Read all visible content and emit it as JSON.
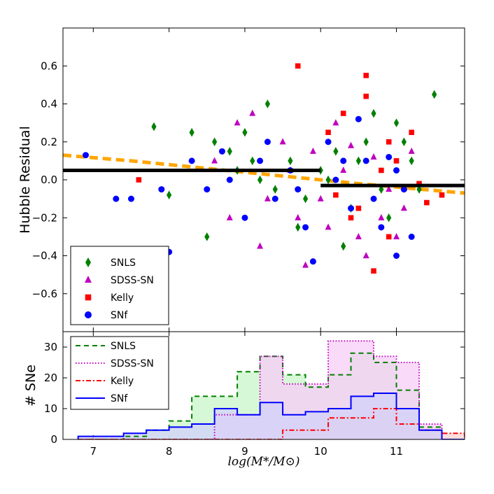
{
  "chart_data": [
    {
      "type": "scatter",
      "panel": "top",
      "xlabel": "log(M*/M⊙)",
      "ylabel": "Hubble Residual",
      "xlim": [
        6.6,
        11.9
      ],
      "ylim": [
        -0.8,
        0.8
      ],
      "xticks": [
        7,
        8,
        9,
        10,
        11
      ],
      "yticks": [
        -0.6,
        -0.4,
        -0.2,
        0.0,
        0.2,
        0.4,
        0.6
      ],
      "ytick_labels": [
        "−0.6",
        "−0.4",
        "−0.2",
        "0.0",
        "0.2",
        "0.4",
        "0.6"
      ],
      "legend_position": "lower-left",
      "step_fit": {
        "color": "#000000",
        "segments": [
          {
            "x": [
              6.6,
              10.0
            ],
            "y": 0.05
          },
          {
            "x": [
              10.0,
              11.9
            ],
            "y": -0.03
          }
        ]
      },
      "trend_fit": {
        "color": "#ffa500",
        "x": [
          6.6,
          7.5,
          8.5,
          9.5,
          10.5,
          11.9
        ],
        "y": [
          0.13,
          0.1,
          0.06,
          0.02,
          -0.02,
          -0.07
        ]
      },
      "series": [
        {
          "name": "SNLS",
          "marker": "diamond",
          "color": "#008000",
          "points": [
            [
              7.8,
              0.28
            ],
            [
              8.3,
              0.25
            ],
            [
              8.6,
              0.2
            ],
            [
              8.8,
              0.15
            ],
            [
              9.0,
              0.25
            ],
            [
              9.2,
              0.0
            ],
            [
              9.4,
              -0.05
            ],
            [
              9.6,
              0.1
            ],
            [
              9.8,
              -0.1
            ],
            [
              10.0,
              0.05
            ],
            [
              10.2,
              0.15
            ],
            [
              10.4,
              -0.15
            ],
            [
              10.6,
              0.2
            ],
            [
              10.8,
              -0.05
            ],
            [
              11.0,
              0.3
            ],
            [
              11.2,
              0.1
            ],
            [
              8.5,
              -0.3
            ],
            [
              9.3,
              0.4
            ],
            [
              10.3,
              -0.35
            ],
            [
              11.1,
              0.2
            ],
            [
              10.9,
              -0.2
            ],
            [
              9.1,
              0.1
            ],
            [
              8.0,
              -0.08
            ],
            [
              10.7,
              0.35
            ],
            [
              11.5,
              0.45
            ],
            [
              11.3,
              -0.05
            ],
            [
              9.7,
              -0.25
            ],
            [
              10.1,
              0.0
            ],
            [
              8.9,
              0.05
            ],
            [
              10.5,
              0.1
            ]
          ]
        },
        {
          "name": "SDSS-SN",
          "marker": "triangle",
          "color": "#bf00bf",
          "points": [
            [
              8.6,
              0.1
            ],
            [
              8.9,
              0.3
            ],
            [
              9.1,
              0.35
            ],
            [
              9.3,
              -0.1
            ],
            [
              9.5,
              0.2
            ],
            [
              9.7,
              -0.2
            ],
            [
              9.9,
              0.15
            ],
            [
              10.1,
              -0.25
            ],
            [
              10.3,
              0.05
            ],
            [
              10.5,
              -0.3
            ],
            [
              10.7,
              0.12
            ],
            [
              10.9,
              -0.05
            ],
            [
              11.1,
              -0.15
            ],
            [
              9.2,
              -0.35
            ],
            [
              10.2,
              0.3
            ],
            [
              10.6,
              -0.4
            ],
            [
              9.8,
              -0.45
            ],
            [
              11.2,
              0.15
            ],
            [
              10.8,
              -0.2
            ],
            [
              8.8,
              -0.2
            ],
            [
              10.4,
              0.18
            ],
            [
              9.6,
              0.05
            ],
            [
              11.0,
              -0.3
            ],
            [
              10.0,
              -0.1
            ]
          ]
        },
        {
          "name": "Kelly",
          "marker": "square",
          "color": "#ff0000",
          "points": [
            [
              7.6,
              0.0
            ],
            [
              9.7,
              0.6
            ],
            [
              10.6,
              0.55
            ],
            [
              10.6,
              0.44
            ],
            [
              10.3,
              0.35
            ],
            [
              10.9,
              -0.3
            ],
            [
              11.2,
              0.25
            ],
            [
              10.2,
              -0.08
            ],
            [
              10.7,
              -0.48
            ],
            [
              11.4,
              -0.12
            ],
            [
              10.1,
              0.25
            ],
            [
              11.0,
              0.1
            ],
            [
              10.5,
              -0.15
            ],
            [
              11.6,
              -0.08
            ],
            [
              10.8,
              0.05
            ],
            [
              10.4,
              -0.2
            ],
            [
              10.9,
              0.2
            ],
            [
              11.3,
              -0.02
            ]
          ]
        },
        {
          "name": "SNf",
          "marker": "circle",
          "color": "#0000ff",
          "points": [
            [
              6.9,
              0.13
            ],
            [
              7.3,
              -0.1
            ],
            [
              7.5,
              -0.1
            ],
            [
              7.9,
              -0.05
            ],
            [
              8.0,
              -0.38
            ],
            [
              8.3,
              0.1
            ],
            [
              8.5,
              -0.05
            ],
            [
              8.7,
              0.15
            ],
            [
              8.8,
              0.0
            ],
            [
              9.0,
              -0.2
            ],
            [
              9.2,
              0.1
            ],
            [
              9.4,
              -0.1
            ],
            [
              9.6,
              0.05
            ],
            [
              9.8,
              -0.25
            ],
            [
              9.9,
              -0.43
            ],
            [
              10.2,
              0.0
            ],
            [
              10.4,
              -0.15
            ],
            [
              10.6,
              0.1
            ],
            [
              10.8,
              -0.25
            ],
            [
              11.0,
              0.05
            ],
            [
              11.2,
              -0.3
            ],
            [
              10.5,
              0.32
            ],
            [
              10.1,
              0.2
            ],
            [
              9.3,
              0.2
            ],
            [
              11.1,
              -0.05
            ],
            [
              10.7,
              -0.1
            ],
            [
              10.9,
              0.12
            ],
            [
              11.0,
              -0.4
            ],
            [
              9.7,
              -0.05
            ],
            [
              10.3,
              0.1
            ]
          ]
        }
      ]
    },
    {
      "type": "step-histogram",
      "panel": "bottom",
      "ylabel": "# SNe",
      "xlim": [
        6.6,
        11.9
      ],
      "ylim": [
        0,
        35
      ],
      "xticks": [
        7,
        8,
        9,
        10,
        11
      ],
      "yticks": [
        0,
        10,
        20,
        30
      ],
      "legend_position": "upper-left",
      "bin_edges": [
        6.8,
        7.1,
        7.4,
        7.7,
        8.0,
        8.3,
        8.6,
        8.9,
        9.2,
        9.5,
        9.8,
        10.1,
        10.4,
        10.7,
        11.0,
        11.3,
        11.6,
        11.9
      ],
      "series": [
        {
          "name": "SNLS",
          "color": "#008000",
          "fill": "#c9f5c9",
          "dash": "7,5",
          "counts": [
            0,
            0,
            1,
            3,
            6,
            14,
            14,
            22,
            27,
            21,
            17,
            21,
            28,
            25,
            16,
            4,
            0
          ]
        },
        {
          "name": "SDSS-SN",
          "color": "#bf00bf",
          "fill": "#f7cdf7",
          "dash": "1.5,2.5",
          "counts": [
            0,
            0,
            0,
            0,
            0,
            0,
            8,
            8,
            27,
            18,
            18,
            32,
            32,
            27,
            25,
            5,
            0
          ]
        },
        {
          "name": "Kelly",
          "color": "#ff0000",
          "fill": "#fbd3d3",
          "dash": "7,3,2,3",
          "counts": [
            0,
            0,
            0,
            0,
            0,
            0,
            0,
            0,
            0,
            3,
            3,
            7,
            7,
            10,
            5,
            3,
            2
          ]
        },
        {
          "name": "SNf",
          "color": "#0000ff",
          "fill": "#d2d2fb",
          "dash": "",
          "counts": [
            1,
            1,
            2,
            3,
            4,
            5,
            10,
            8,
            12,
            8,
            9,
            10,
            14,
            15,
            10,
            3,
            0
          ]
        }
      ]
    }
  ]
}
